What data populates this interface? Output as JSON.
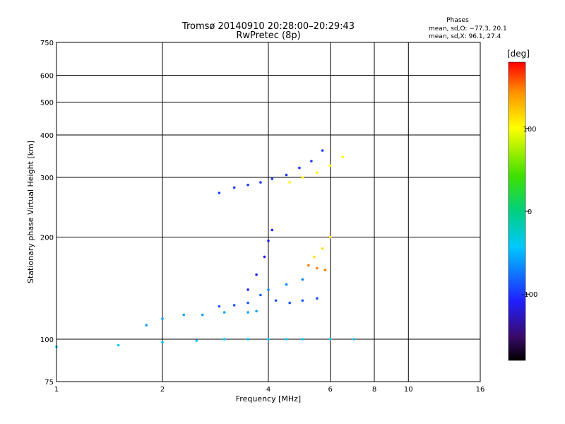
{
  "chart_data": {
    "type": "scatter",
    "title": "Tromsø 20140910 20:28:00–20:29:43",
    "subtitle": "RwPretec (8p)",
    "xlabel": "Frequency [MHz]",
    "ylabel": "Stationary phase Virtual Height [km]",
    "x_scale": "log",
    "y_scale": "log",
    "xlim": [
      1,
      16
    ],
    "ylim": [
      75,
      750
    ],
    "x_ticks": [
      1,
      2,
      4,
      6,
      8,
      10,
      16
    ],
    "y_ticks": [
      75,
      100,
      200,
      300,
      400,
      500,
      600,
      750
    ],
    "grid": true,
    "stats": {
      "heading": "Phases",
      "line_o": "mean, sd,O: −77.3, 20.1",
      "line_x": "mean, sd,X:  96.1, 27.4"
    },
    "colorbar": {
      "label": "[deg]",
      "ticks": [
        100,
        0,
        -100
      ],
      "range": [
        -180,
        180
      ],
      "colormap": "rainbow"
    },
    "traces": [
      {
        "phase": -45,
        "x": [
          1.0,
          1.5,
          2.0,
          2.5,
          3.0,
          3.5,
          4.0,
          4.5,
          5.0,
          6.0,
          7.0
        ],
        "y": [
          95,
          96,
          98,
          99,
          100,
          100,
          100,
          100,
          100,
          100,
          100
        ]
      },
      {
        "phase": -60,
        "x": [
          1.8,
          2.0,
          2.3,
          2.6,
          3.0,
          3.5,
          3.7
        ],
        "y": [
          110,
          115,
          118,
          118,
          120,
          120,
          121
        ]
      },
      {
        "phase": -90,
        "x": [
          2.9,
          3.2,
          3.5,
          3.8,
          4.2,
          4.6,
          5.0,
          5.5
        ],
        "y": [
          125,
          126,
          128,
          135,
          130,
          128,
          130,
          132
        ]
      },
      {
        "phase": -110,
        "x": [
          3.5,
          3.7,
          3.9,
          4.0,
          4.1
        ],
        "y": [
          140,
          155,
          175,
          195,
          210
        ]
      },
      {
        "phase": -100,
        "x": [
          2.9,
          3.2,
          3.5,
          3.8,
          4.1,
          4.5,
          4.9,
          5.3,
          5.7
        ],
        "y": [
          270,
          280,
          285,
          290,
          297,
          305,
          320,
          335,
          360
        ]
      },
      {
        "phase": 100,
        "x": [
          4.6,
          5.0,
          5.5,
          6.0,
          6.5
        ],
        "y": [
          290,
          300,
          310,
          325,
          345
        ]
      },
      {
        "phase": 110,
        "x": [
          5.4,
          5.7,
          6.0
        ],
        "y": [
          175,
          185,
          200
        ]
      },
      {
        "phase": 150,
        "x": [
          5.2,
          5.5,
          5.8
        ],
        "y": [
          165,
          162,
          160
        ]
      },
      {
        "phase": -70,
        "x": [
          4.0,
          4.5,
          5.0
        ],
        "y": [
          140,
          145,
          150
        ]
      }
    ]
  }
}
